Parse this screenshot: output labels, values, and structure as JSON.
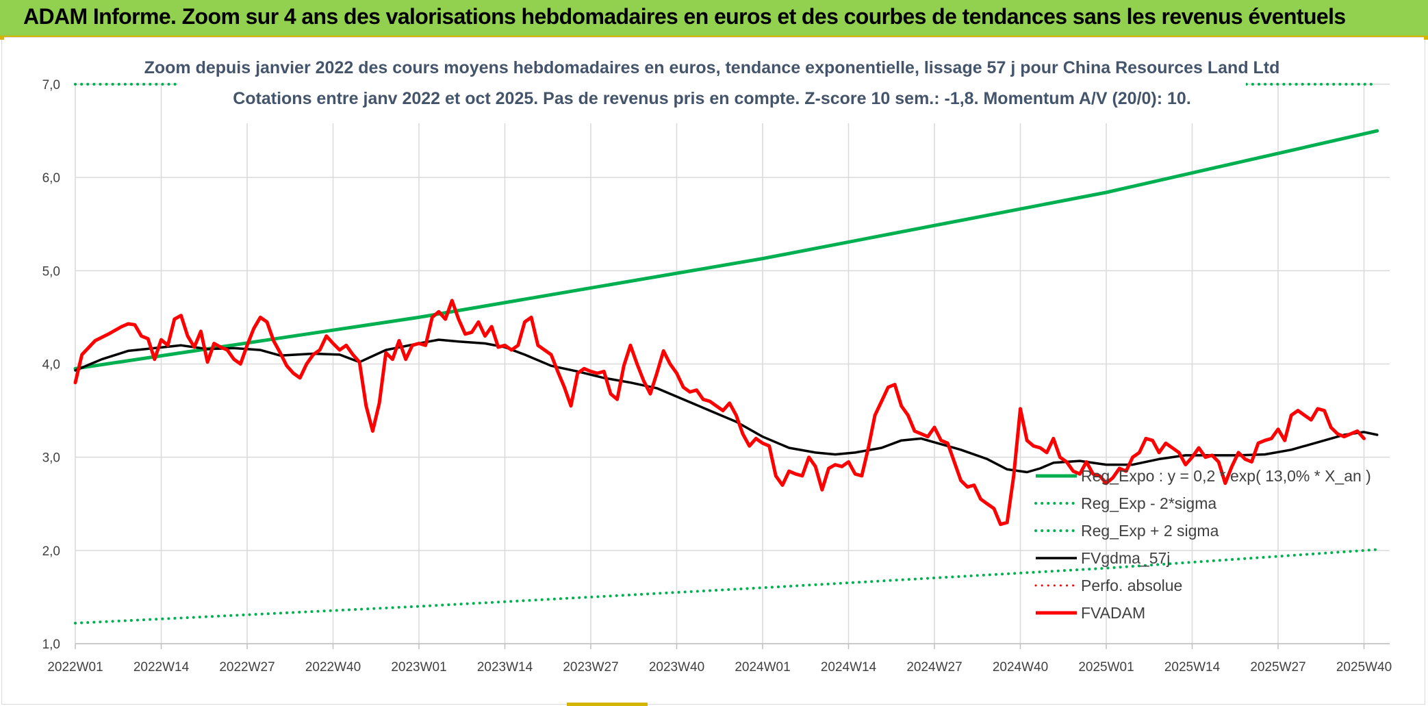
{
  "page_title": "ADAM Informe. Zoom sur 4 ans des valorisations hebdomadaires en euros et des courbes de tendances sans les revenus éventuels",
  "colors": {
    "banner": "#92d050",
    "reg_expo": "#00b050",
    "fvadam": "#ff0000",
    "fvgdma": "#000000",
    "grid": "#d9d9d9",
    "subtitle": "#44546a"
  },
  "chart_data": {
    "type": "line",
    "title": "Zoom depuis janvier 2022 des cours moyens hebdomadaires en euros, tendance exponentielle, lissage 57 j pour China Resources Land Ltd",
    "subtitle": "Cotations entre janv 2022 et oct 2025. Pas de revenus pris en compte. Z-score 10 sem.: -1,8. Momentum A/V (20/0): 10.",
    "xlabel": "",
    "ylabel": "",
    "ylim": [
      1.0,
      7.0
    ],
    "yticks": [
      "1,0",
      "2,0",
      "3,0",
      "4,0",
      "5,0",
      "6,0",
      "7,0"
    ],
    "x_range_weeks": [
      0,
      197
    ],
    "xticks": [
      {
        "label": "2022W01",
        "week": 0
      },
      {
        "label": "2022W14",
        "week": 13
      },
      {
        "label": "2022W27",
        "week": 26
      },
      {
        "label": "2022W40",
        "week": 39
      },
      {
        "label": "2023W01",
        "week": 52
      },
      {
        "label": "2023W14",
        "week": 65
      },
      {
        "label": "2023W27",
        "week": 78
      },
      {
        "label": "2023W40",
        "week": 91
      },
      {
        "label": "2024W01",
        "week": 104
      },
      {
        "label": "2024W14",
        "week": 117
      },
      {
        "label": "2024W27",
        "week": 130
      },
      {
        "label": "2024W40",
        "week": 143
      },
      {
        "label": "2025W01",
        "week": 156
      },
      {
        "label": "2025W14",
        "week": 169
      },
      {
        "label": "2025W27",
        "week": 182
      },
      {
        "label": "2025W40",
        "week": 195
      }
    ],
    "legend": [
      {
        "key": "reg_expo",
        "label": "Reg_Expo : y = 0,2 * exp( 13,0% *  X_an )"
      },
      {
        "key": "reg_minus",
        "label": "Reg_Exp - 2*sigma"
      },
      {
        "key": "reg_plus",
        "label": "Reg_Exp + 2 sigma"
      },
      {
        "key": "fvgdma",
        "label": "FVgdma_57j"
      },
      {
        "key": "perfo",
        "label": "Perfo. absolue"
      },
      {
        "key": "fvadam",
        "label": "FVADAM"
      }
    ],
    "series": [
      {
        "key": "reg_expo",
        "name": "Reg_Expo",
        "style": "solid",
        "color": "#00b050",
        "width": 5,
        "points": [
          [
            0,
            3.95
          ],
          [
            52,
            4.5
          ],
          [
            104,
            5.13
          ],
          [
            156,
            5.84
          ],
          [
            197,
            6.5
          ]
        ]
      },
      {
        "key": "reg_minus",
        "name": "Reg_Exp - 2*sigma",
        "style": "dotted",
        "color": "#00b050",
        "width": 4,
        "points": [
          [
            0,
            1.22
          ],
          [
            52,
            1.4
          ],
          [
            104,
            1.6
          ],
          [
            156,
            1.81
          ],
          [
            197,
            2.01
          ]
        ]
      },
      {
        "key": "reg_plus",
        "name": "Reg_Exp + 2 sigma",
        "style": "dotted",
        "color": "#00b050",
        "width": 4,
        "points": [
          [
            0,
            7.0
          ],
          [
            197,
            7.0
          ]
        ]
      },
      {
        "key": "perfo",
        "name": "Perfo. absolue",
        "style": "dotted",
        "color": "#ff0000",
        "width": 3,
        "points": []
      },
      {
        "key": "fvgdma",
        "name": "FVgdma_57j",
        "style": "solid",
        "color": "#000000",
        "width": 3.5,
        "points": [
          [
            0,
            3.93
          ],
          [
            4,
            4.05
          ],
          [
            8,
            4.14
          ],
          [
            12,
            4.17
          ],
          [
            16,
            4.2
          ],
          [
            20,
            4.16
          ],
          [
            24,
            4.17
          ],
          [
            28,
            4.15
          ],
          [
            31,
            4.09
          ],
          [
            36,
            4.11
          ],
          [
            40,
            4.1
          ],
          [
            43,
            4.02
          ],
          [
            47,
            4.15
          ],
          [
            52,
            4.22
          ],
          [
            55,
            4.26
          ],
          [
            58,
            4.24
          ],
          [
            62,
            4.22
          ],
          [
            65,
            4.18
          ],
          [
            68,
            4.1
          ],
          [
            72,
            3.98
          ],
          [
            76,
            3.92
          ],
          [
            80,
            3.85
          ],
          [
            84,
            3.8
          ],
          [
            88,
            3.74
          ],
          [
            92,
            3.62
          ],
          [
            96,
            3.5
          ],
          [
            100,
            3.38
          ],
          [
            104,
            3.22
          ],
          [
            108,
            3.1
          ],
          [
            112,
            3.05
          ],
          [
            115,
            3.03
          ],
          [
            118,
            3.05
          ],
          [
            122,
            3.1
          ],
          [
            125,
            3.18
          ],
          [
            128,
            3.2
          ],
          [
            130,
            3.16
          ],
          [
            134,
            3.08
          ],
          [
            138,
            2.98
          ],
          [
            141,
            2.87
          ],
          [
            144,
            2.84
          ],
          [
            146,
            2.88
          ],
          [
            148,
            2.94
          ],
          [
            152,
            2.96
          ],
          [
            156,
            2.92
          ],
          [
            160,
            2.92
          ],
          [
            164,
            2.98
          ],
          [
            168,
            3.02
          ],
          [
            172,
            3.02
          ],
          [
            176,
            3.02
          ],
          [
            180,
            3.03
          ],
          [
            184,
            3.08
          ],
          [
            188,
            3.16
          ],
          [
            192,
            3.24
          ],
          [
            195,
            3.27
          ],
          [
            197,
            3.24
          ]
        ]
      },
      {
        "key": "fvadam",
        "name": "FVADAM",
        "style": "solid",
        "color": "#ff0000",
        "width": 5,
        "points": [
          [
            0,
            3.8
          ],
          [
            1,
            4.1
          ],
          [
            3,
            4.25
          ],
          [
            5,
            4.32
          ],
          [
            7,
            4.4
          ],
          [
            8,
            4.43
          ],
          [
            9,
            4.42
          ],
          [
            10,
            4.3
          ],
          [
            11,
            4.27
          ],
          [
            12,
            4.05
          ],
          [
            13,
            4.26
          ],
          [
            14,
            4.2
          ],
          [
            15,
            4.48
          ],
          [
            16,
            4.52
          ],
          [
            17,
            4.3
          ],
          [
            18,
            4.18
          ],
          [
            19,
            4.35
          ],
          [
            20,
            4.02
          ],
          [
            21,
            4.22
          ],
          [
            22,
            4.18
          ],
          [
            23,
            4.15
          ],
          [
            24,
            4.05
          ],
          [
            25,
            4.0
          ],
          [
            26,
            4.2
          ],
          [
            27,
            4.38
          ],
          [
            28,
            4.5
          ],
          [
            29,
            4.45
          ],
          [
            30,
            4.25
          ],
          [
            31,
            4.12
          ],
          [
            32,
            3.98
          ],
          [
            33,
            3.9
          ],
          [
            34,
            3.85
          ],
          [
            35,
            4.0
          ],
          [
            36,
            4.1
          ],
          [
            37,
            4.15
          ],
          [
            38,
            4.3
          ],
          [
            39,
            4.22
          ],
          [
            40,
            4.15
          ],
          [
            41,
            4.2
          ],
          [
            42,
            4.1
          ],
          [
            43,
            4.02
          ],
          [
            44,
            3.55
          ],
          [
            45,
            3.28
          ],
          [
            46,
            3.58
          ],
          [
            47,
            4.12
          ],
          [
            48,
            4.05
          ],
          [
            49,
            4.25
          ],
          [
            50,
            4.05
          ],
          [
            51,
            4.2
          ],
          [
            52,
            4.22
          ],
          [
            53,
            4.2
          ],
          [
            54,
            4.5
          ],
          [
            55,
            4.56
          ],
          [
            56,
            4.48
          ],
          [
            57,
            4.68
          ],
          [
            58,
            4.48
          ],
          [
            59,
            4.32
          ],
          [
            60,
            4.34
          ],
          [
            61,
            4.45
          ],
          [
            62,
            4.3
          ],
          [
            63,
            4.4
          ],
          [
            64,
            4.18
          ],
          [
            65,
            4.2
          ],
          [
            66,
            4.15
          ],
          [
            67,
            4.2
          ],
          [
            68,
            4.45
          ],
          [
            69,
            4.5
          ],
          [
            70,
            4.2
          ],
          [
            71,
            4.15
          ],
          [
            72,
            4.1
          ],
          [
            73,
            3.92
          ],
          [
            74,
            3.75
          ],
          [
            75,
            3.55
          ],
          [
            76,
            3.9
          ],
          [
            77,
            3.95
          ],
          [
            78,
            3.92
          ],
          [
            79,
            3.9
          ],
          [
            80,
            3.92
          ],
          [
            81,
            3.68
          ],
          [
            82,
            3.62
          ],
          [
            83,
            3.98
          ],
          [
            84,
            4.2
          ],
          [
            85,
            4.0
          ],
          [
            86,
            3.82
          ],
          [
            87,
            3.68
          ],
          [
            88,
            3.9
          ],
          [
            89,
            4.14
          ],
          [
            90,
            4.0
          ],
          [
            91,
            3.9
          ],
          [
            92,
            3.75
          ],
          [
            93,
            3.7
          ],
          [
            94,
            3.72
          ],
          [
            95,
            3.62
          ],
          [
            96,
            3.6
          ],
          [
            97,
            3.55
          ],
          [
            98,
            3.5
          ],
          [
            99,
            3.58
          ],
          [
            100,
            3.45
          ],
          [
            101,
            3.25
          ],
          [
            102,
            3.12
          ],
          [
            103,
            3.2
          ],
          [
            104,
            3.15
          ],
          [
            105,
            3.12
          ],
          [
            106,
            2.8
          ],
          [
            107,
            2.7
          ],
          [
            108,
            2.85
          ],
          [
            109,
            2.82
          ],
          [
            110,
            2.8
          ],
          [
            111,
            3.0
          ],
          [
            112,
            2.9
          ],
          [
            113,
            2.65
          ],
          [
            114,
            2.88
          ],
          [
            115,
            2.92
          ],
          [
            116,
            2.9
          ],
          [
            117,
            2.95
          ],
          [
            118,
            2.82
          ],
          [
            119,
            2.8
          ],
          [
            120,
            3.1
          ],
          [
            121,
            3.45
          ],
          [
            122,
            3.6
          ],
          [
            123,
            3.75
          ],
          [
            124,
            3.78
          ],
          [
            125,
            3.55
          ],
          [
            126,
            3.45
          ],
          [
            127,
            3.28
          ],
          [
            128,
            3.25
          ],
          [
            129,
            3.22
          ],
          [
            130,
            3.32
          ],
          [
            131,
            3.18
          ],
          [
            132,
            3.15
          ],
          [
            133,
            2.95
          ],
          [
            134,
            2.75
          ],
          [
            135,
            2.68
          ],
          [
            136,
            2.7
          ],
          [
            137,
            2.55
          ],
          [
            138,
            2.5
          ],
          [
            139,
            2.45
          ],
          [
            140,
            2.28
          ],
          [
            141,
            2.3
          ],
          [
            142,
            2.8
          ],
          [
            143,
            3.52
          ],
          [
            144,
            3.18
          ],
          [
            145,
            3.12
          ],
          [
            146,
            3.1
          ],
          [
            147,
            3.05
          ],
          [
            148,
            3.2
          ],
          [
            149,
            3.0
          ],
          [
            150,
            2.95
          ],
          [
            151,
            2.85
          ],
          [
            152,
            2.82
          ],
          [
            153,
            2.95
          ],
          [
            154,
            2.82
          ],
          [
            155,
            2.8
          ],
          [
            156,
            2.72
          ],
          [
            157,
            2.78
          ],
          [
            158,
            2.88
          ],
          [
            159,
            2.85
          ],
          [
            160,
            3.0
          ],
          [
            161,
            3.05
          ],
          [
            162,
            3.2
          ],
          [
            163,
            3.18
          ],
          [
            164,
            3.05
          ],
          [
            165,
            3.15
          ],
          [
            166,
            3.1
          ],
          [
            167,
            3.05
          ],
          [
            168,
            2.92
          ],
          [
            169,
            3.0
          ],
          [
            170,
            3.1
          ],
          [
            171,
            3.0
          ],
          [
            172,
            3.02
          ],
          [
            173,
            2.95
          ],
          [
            174,
            2.72
          ],
          [
            175,
            2.9
          ],
          [
            176,
            3.05
          ],
          [
            177,
            2.98
          ],
          [
            178,
            2.95
          ],
          [
            179,
            3.15
          ],
          [
            180,
            3.18
          ],
          [
            181,
            3.2
          ],
          [
            182,
            3.3
          ],
          [
            183,
            3.18
          ],
          [
            184,
            3.45
          ],
          [
            185,
            3.5
          ],
          [
            186,
            3.45
          ],
          [
            187,
            3.4
          ],
          [
            188,
            3.52
          ],
          [
            189,
            3.5
          ],
          [
            190,
            3.32
          ],
          [
            191,
            3.25
          ],
          [
            192,
            3.22
          ],
          [
            193,
            3.25
          ],
          [
            194,
            3.28
          ],
          [
            195,
            3.2
          ]
        ]
      }
    ]
  }
}
